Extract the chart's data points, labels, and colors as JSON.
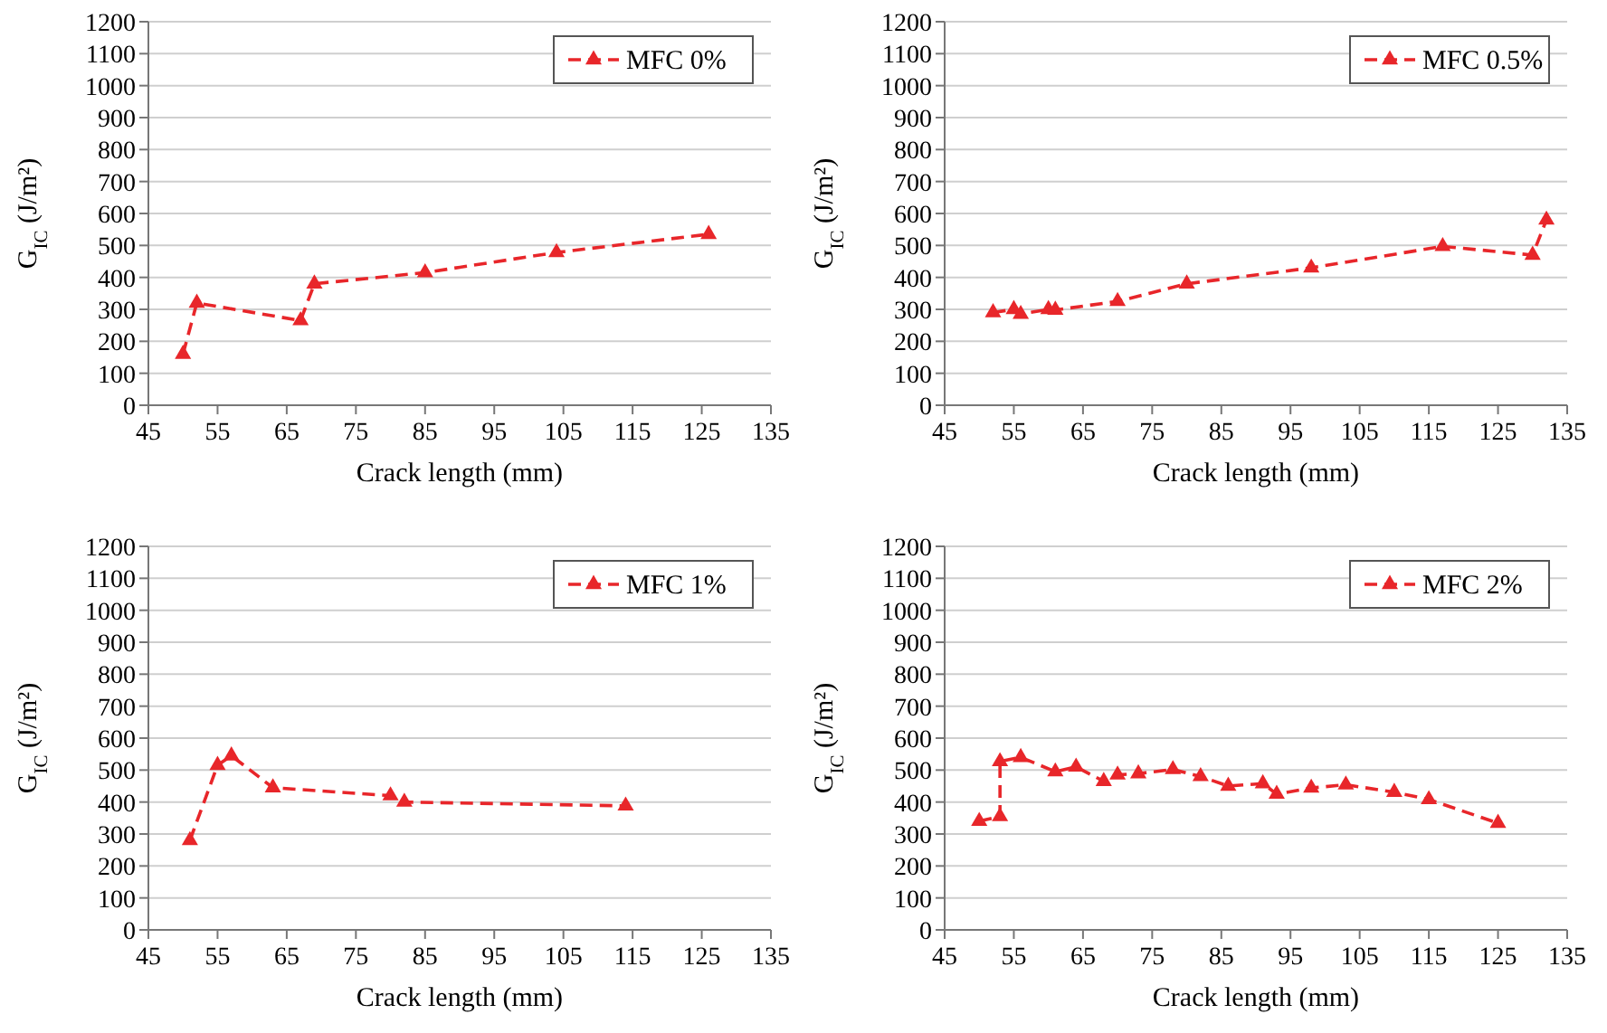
{
  "chart_data": [
    {
      "type": "line",
      "xlabel": "Crack length (mm)",
      "ylabel": "G$_{IC}$ (J/m²)",
      "xlim": [
        45,
        135
      ],
      "xticks": [
        45,
        55,
        65,
        75,
        85,
        95,
        105,
        115,
        125,
        135
      ],
      "ylim": [
        0,
        1200
      ],
      "yticks": [
        0,
        100,
        200,
        300,
        400,
        500,
        600,
        700,
        800,
        900,
        1000,
        1100,
        1200
      ],
      "grid": "y",
      "legend": "top right",
      "marker": "triangle",
      "line_style": "dashed",
      "series": [
        {
          "name": "MFC 0%",
          "color": "#e8262a",
          "x": [
            50,
            52,
            67,
            69,
            85,
            104,
            126
          ],
          "values": [
            160,
            320,
            265,
            380,
            415,
            478,
            535
          ]
        }
      ]
    },
    {
      "type": "line",
      "xlabel": "Crack length (mm)",
      "ylabel": "G$_{IC}$ (J/m²)",
      "xlim": [
        45,
        135
      ],
      "xticks": [
        45,
        55,
        65,
        75,
        85,
        95,
        105,
        115,
        125,
        135
      ],
      "ylim": [
        0,
        1200
      ],
      "yticks": [
        0,
        100,
        200,
        300,
        400,
        500,
        600,
        700,
        800,
        900,
        1000,
        1100,
        1200
      ],
      "grid": "y",
      "legend": "top right",
      "marker": "triangle",
      "line_style": "dashed",
      "series": [
        {
          "name": "MFC 0.5%",
          "color": "#e8262a",
          "x": [
            52,
            55,
            56,
            60,
            61,
            70,
            80,
            98,
            117,
            130,
            132
          ],
          "values": [
            290,
            300,
            285,
            300,
            298,
            325,
            380,
            430,
            497,
            470,
            580
          ]
        }
      ]
    },
    {
      "type": "line",
      "xlabel": "Crack length (mm)",
      "ylabel": "G$_{IC}$ (J/m²)",
      "xlim": [
        45,
        135
      ],
      "xticks": [
        45,
        55,
        65,
        75,
        85,
        95,
        105,
        115,
        125,
        135
      ],
      "ylim": [
        0,
        1200
      ],
      "yticks": [
        0,
        100,
        200,
        300,
        400,
        500,
        600,
        700,
        800,
        900,
        1000,
        1100,
        1200
      ],
      "grid": "y",
      "legend": "top right",
      "marker": "triangle",
      "line_style": "dashed",
      "series": [
        {
          "name": "MFC 1%",
          "color": "#e8262a",
          "x": [
            51,
            55,
            57,
            63,
            80,
            82,
            114
          ],
          "values": [
            280,
            515,
            545,
            445,
            420,
            400,
            388
          ]
        }
      ]
    },
    {
      "type": "line",
      "xlabel": "Crack length (mm)",
      "ylabel": "G$_{IC}$ (J/m²)",
      "xlim": [
        45,
        135
      ],
      "xticks": [
        45,
        55,
        65,
        75,
        85,
        95,
        105,
        115,
        125,
        135
      ],
      "ylim": [
        0,
        1200
      ],
      "yticks": [
        0,
        100,
        200,
        300,
        400,
        500,
        600,
        700,
        800,
        900,
        1000,
        1100,
        1200
      ],
      "grid": "y",
      "legend": "top right",
      "marker": "triangle",
      "line_style": "dashed",
      "series": [
        {
          "name": "MFC 2%",
          "color": "#e8262a",
          "x": [
            50,
            53,
            53,
            56,
            61,
            64,
            68,
            70,
            73,
            78,
            82,
            86,
            91,
            93,
            98,
            103,
            110,
            115,
            125
          ],
          "values": [
            340,
            355,
            527,
            540,
            495,
            510,
            465,
            485,
            489,
            502,
            480,
            450,
            458,
            425,
            444,
            454,
            431,
            408,
            334
          ]
        }
      ]
    }
  ]
}
